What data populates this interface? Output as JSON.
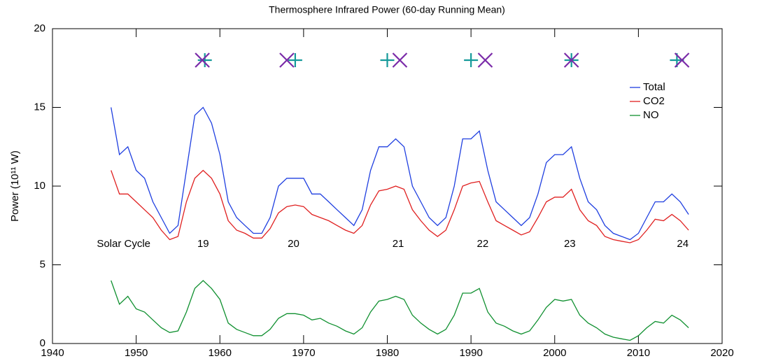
{
  "chart_data": {
    "type": "line",
    "title": "Thermosphere Infrared Power (60-day Running Mean)",
    "y_label": "Power (10¹¹ W)",
    "x": [
      1947,
      1948,
      1949,
      1950,
      1951,
      1952,
      1953,
      1954,
      1955,
      1956,
      1957,
      1958,
      1959,
      1960,
      1961,
      1962,
      1963,
      1964,
      1965,
      1966,
      1967,
      1968,
      1969,
      1970,
      1971,
      1972,
      1973,
      1974,
      1975,
      1976,
      1977,
      1978,
      1979,
      1980,
      1981,
      1982,
      1983,
      1984,
      1985,
      1986,
      1987,
      1988,
      1989,
      1990,
      1991,
      1992,
      1993,
      1994,
      1995,
      1996,
      1997,
      1998,
      1999,
      2000,
      2001,
      2002,
      2003,
      2004,
      2005,
      2006,
      2007,
      2008,
      2009,
      2010,
      2011,
      2012,
      2013,
      2014,
      2015,
      2016
    ],
    "series": [
      {
        "name": "Total",
        "color": "#1f3fe0",
        "values": [
          15,
          12,
          12.5,
          11,
          10.5,
          9,
          8,
          7,
          7.5,
          11,
          14.5,
          15,
          14,
          12,
          9,
          8,
          7.5,
          7,
          7,
          8,
          10,
          10.5,
          10.5,
          10.5,
          9.5,
          9.5,
          9,
          8.5,
          8,
          7.5,
          8.5,
          11,
          12.5,
          12.5,
          13,
          12.5,
          10,
          9,
          8,
          7.5,
          8,
          10,
          13,
          13,
          13.5,
          11,
          9,
          8.5,
          8,
          7.5,
          8,
          9.5,
          11.5,
          12,
          12,
          12.5,
          10.5,
          9,
          8.5,
          7.5,
          7,
          6.8,
          6.6,
          7,
          8,
          9,
          9,
          9.5,
          9,
          8.2
        ]
      },
      {
        "name": "CO2",
        "color": "#e02020",
        "values": [
          11,
          9.5,
          9.5,
          9,
          8.5,
          8,
          7.2,
          6.6,
          6.8,
          9,
          10.5,
          11,
          10.5,
          9.5,
          7.8,
          7.2,
          7,
          6.7,
          6.7,
          7.3,
          8.3,
          8.7,
          8.8,
          8.7,
          8.2,
          8,
          7.8,
          7.5,
          7.2,
          7,
          7.5,
          8.8,
          9.7,
          9.8,
          10,
          9.8,
          8.5,
          7.8,
          7.2,
          6.8,
          7.2,
          8.5,
          10,
          10.2,
          10.3,
          9,
          7.8,
          7.5,
          7.2,
          6.9,
          7.1,
          8,
          9,
          9.3,
          9.3,
          9.8,
          8.5,
          7.8,
          7.5,
          6.8,
          6.6,
          6.5,
          6.4,
          6.6,
          7.2,
          7.9,
          7.8,
          8.2,
          7.8,
          7.2
        ]
      },
      {
        "name": "NO",
        "color": "#109030",
        "values": [
          4,
          2.5,
          3,
          2.2,
          2,
          1.5,
          1,
          0.7,
          0.8,
          2,
          3.5,
          4,
          3.5,
          2.8,
          1.3,
          0.9,
          0.7,
          0.5,
          0.5,
          0.9,
          1.6,
          1.9,
          1.9,
          1.8,
          1.5,
          1.6,
          1.3,
          1.1,
          0.8,
          0.6,
          1,
          2,
          2.7,
          2.8,
          3,
          2.8,
          1.8,
          1.3,
          0.9,
          0.6,
          0.9,
          1.8,
          3.2,
          3.2,
          3.5,
          2,
          1.3,
          1.1,
          0.8,
          0.6,
          0.8,
          1.5,
          2.3,
          2.8,
          2.7,
          2.8,
          1.8,
          1.3,
          1,
          0.6,
          0.4,
          0.3,
          0.2,
          0.5,
          1,
          1.4,
          1.3,
          1.8,
          1.5,
          1
        ]
      }
    ],
    "markers": [
      {
        "symbol": "plus",
        "color": "#159a9a",
        "x": [
          1958.2,
          1969,
          1980,
          1990,
          2002,
          2014.6
        ],
        "y": [
          18,
          18,
          18,
          18,
          18,
          18
        ]
      },
      {
        "symbol": "cross",
        "color": "#7a2aa8",
        "x": [
          1957.9,
          1968,
          1981.5,
          1991.7,
          2002,
          2015.2
        ],
        "y": [
          18,
          18,
          18,
          18,
          18,
          18
        ]
      }
    ],
    "annotations": [
      {
        "text": "Solar Cycle",
        "x": 1948.5,
        "y": 6.3
      },
      {
        "text": "19",
        "x": 1958,
        "y": 6.3
      },
      {
        "text": "20",
        "x": 1968.8,
        "y": 6.3
      },
      {
        "text": "21",
        "x": 1981.3,
        "y": 6.3
      },
      {
        "text": "22",
        "x": 1991.4,
        "y": 6.3
      },
      {
        "text": "23",
        "x": 2001.8,
        "y": 6.3
      },
      {
        "text": "24",
        "x": 2015.3,
        "y": 6.3
      }
    ],
    "xlim": [
      1940,
      2020
    ],
    "xticks": [
      1940,
      1950,
      1960,
      1970,
      1980,
      1990,
      2000,
      2010,
      2020
    ],
    "ylim": [
      0,
      20
    ],
    "yticks": [
      0,
      5,
      10,
      15,
      20
    ],
    "legend": "upper right"
  }
}
